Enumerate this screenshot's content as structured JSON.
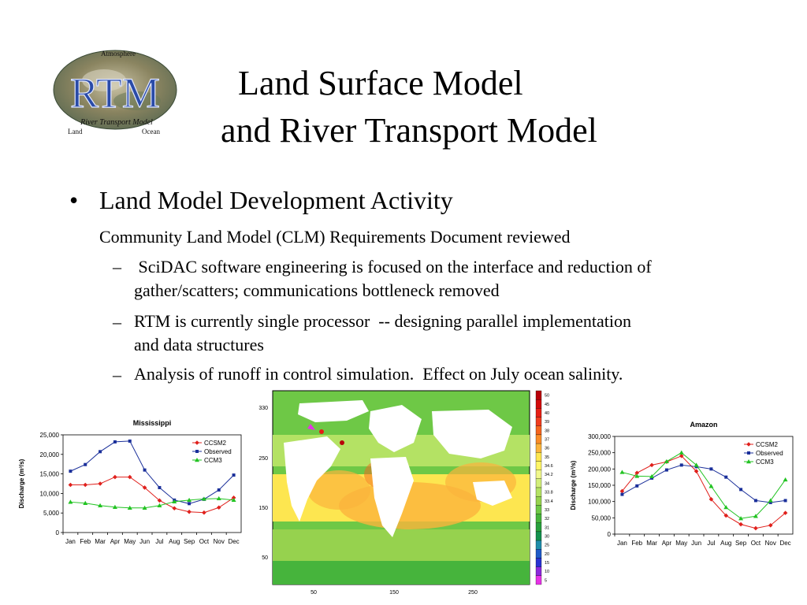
{
  "slide": {
    "logo": {
      "main_text": "RTM",
      "top_text": "Atmosphere",
      "arc_text": "River Transport Model",
      "left_text": "Land",
      "right_text": "Ocean"
    },
    "title_line1": "Land Surface Model",
    "title_line2": "and River Transport Model",
    "bullet": "•",
    "heading": "Land Model Development Activity",
    "subheading": "Community Land Model (CLM) Requirements Document reviewed",
    "dash": "–",
    "items": [
      {
        "line1": " SciDAC software engineering is focused on the interface and reduction of",
        "line2": "gather/scatters; communications bottleneck removed"
      },
      {
        "line1": "RTM is currently single processor  -- designing parallel implementation",
        "line2": "and data structures"
      },
      {
        "line1": "Analysis of runoff in control simulation.  Effect on July ocean salinity.",
        "line2": ""
      }
    ]
  },
  "chart_data": [
    {
      "type": "line",
      "title": "Mississippi",
      "xlabel": "",
      "ylabel": "Discharge (m³/s)",
      "ylim": [
        0,
        25000
      ],
      "yticks": [
        "0",
        "5,000",
        "10,000",
        "15,000",
        "20,000",
        "25,000"
      ],
      "ytick_values": [
        0,
        5000,
        10000,
        15000,
        20000,
        25000
      ],
      "categories": [
        "Jan",
        "Feb",
        "Mar",
        "Apr",
        "May",
        "Jun",
        "Jul",
        "Aug",
        "Sep",
        "Oct",
        "Nov",
        "Dec"
      ],
      "legend_position": "top-right",
      "series": [
        {
          "name": "CCSM2",
          "color": "#e0201c",
          "marker": "diamond",
          "values": [
            12200,
            12200,
            12500,
            14200,
            14200,
            11500,
            8200,
            6200,
            5300,
            5100,
            6400,
            8900
          ]
        },
        {
          "name": "Observed",
          "color": "#1a2f9a",
          "marker": "square",
          "values": [
            15700,
            17400,
            20700,
            23200,
            23400,
            16000,
            11500,
            8300,
            7400,
            8500,
            10900,
            14700
          ]
        },
        {
          "name": "CCM3",
          "color": "#22c322",
          "marker": "triangle",
          "values": [
            7800,
            7500,
            6900,
            6500,
            6300,
            6300,
            6900,
            7900,
            8300,
            8600,
            8700,
            8300
          ]
        }
      ]
    },
    {
      "type": "line",
      "title": "Amazon",
      "xlabel": "",
      "ylabel": "Discharge (m³/s)",
      "ylim": [
        0,
        300000
      ],
      "yticks": [
        "0",
        "50,000",
        "100,000",
        "150,000",
        "200,000",
        "250,000",
        "300,000"
      ],
      "ytick_values": [
        0,
        50000,
        100000,
        150000,
        200000,
        250000,
        300000
      ],
      "categories": [
        "Jan",
        "Feb",
        "Mar",
        "Apr",
        "May",
        "Jun",
        "Jul",
        "Aug",
        "Sep",
        "Oct",
        "Nov",
        "Dec"
      ],
      "legend_position": "top-right",
      "series": [
        {
          "name": "CCSM2",
          "color": "#e0201c",
          "marker": "diamond",
          "values": [
            132000,
            188000,
            212000,
            222000,
            240000,
            193000,
            107000,
            57000,
            30000,
            18000,
            27000,
            65000
          ]
        },
        {
          "name": "Observed",
          "color": "#1a2f9a",
          "marker": "square",
          "values": [
            122000,
            148000,
            172000,
            197000,
            212000,
            207000,
            200000,
            175000,
            137000,
            103000,
            97000,
            103000
          ]
        },
        {
          "name": "CCM3",
          "color": "#22c322",
          "marker": "triangle",
          "values": [
            190000,
            178000,
            177000,
            223000,
            250000,
            212000,
            147000,
            82000,
            48000,
            55000,
            103000,
            167000
          ]
        }
      ]
    },
    {
      "type": "heatmap",
      "title": "",
      "xlabel": "",
      "ylabel": "",
      "xticks": [
        "50",
        "150",
        "250"
      ],
      "yticks": [
        "50",
        "150",
        "250",
        "330"
      ],
      "colorbar": [
        "50",
        "45",
        "40",
        "39",
        "38",
        "37",
        "36",
        "35",
        "34.6",
        "34.2",
        "34",
        "33.8",
        "33.4",
        "33",
        "32",
        "31",
        "30",
        "25",
        "20",
        "15",
        "10",
        "5"
      ],
      "colorbar_colors": [
        "#b8000a",
        "#d20a0a",
        "#e61e14",
        "#f03c1e",
        "#f5641e",
        "#fa8c28",
        "#fbb43c",
        "#fde650",
        "#fff566",
        "#f0f78c",
        "#d2ee7a",
        "#b4e264",
        "#96d24e",
        "#6ec846",
        "#46b43c",
        "#28a03c",
        "#14914e",
        "#1e8caa",
        "#1e5ac8",
        "#2832d2",
        "#8c28dc",
        "#e632e6"
      ]
    }
  ]
}
